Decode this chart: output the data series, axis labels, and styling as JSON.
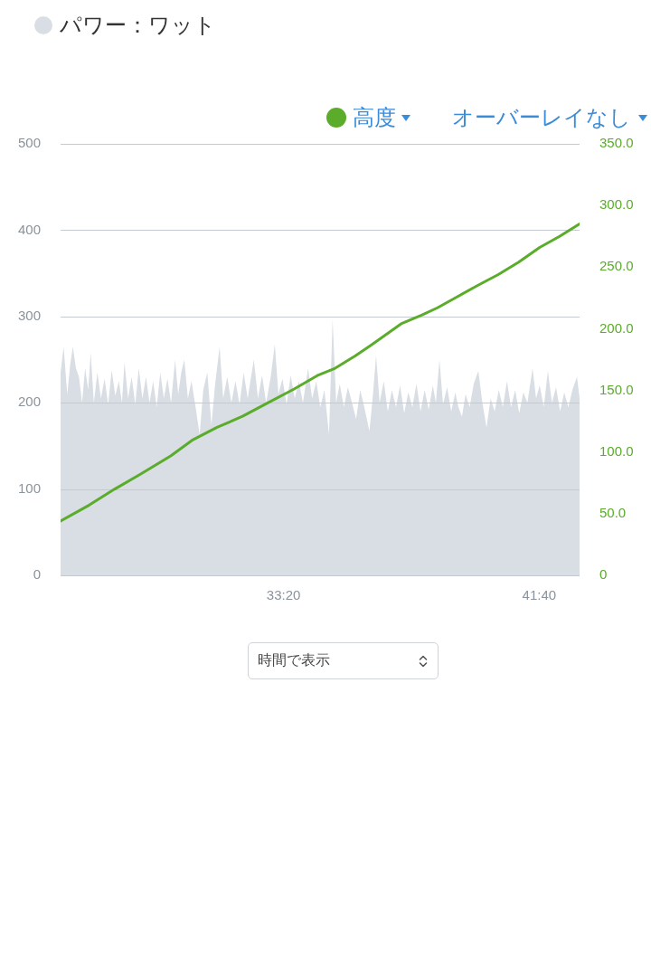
{
  "chart_data": {
    "type": "area",
    "series": [
      {
        "name": "パワー：ワット",
        "color": "#d9dee4",
        "x": [
          1564,
          1570,
          1577,
          1583,
          1588,
          1594,
          1600,
          1606,
          1612,
          1618,
          1623,
          1629,
          1636,
          1643,
          1650,
          1657,
          1664,
          1671,
          1678,
          1684,
          1689,
          1696,
          1703,
          1710,
          1717,
          1724,
          1731,
          1738,
          1745,
          1752,
          1759,
          1766,
          1773,
          1780,
          1788,
          1794,
          1800,
          1806,
          1813,
          1820,
          1828,
          1836,
          1843,
          1851,
          1859,
          1866,
          1875,
          1882,
          1890,
          1898,
          1906,
          1914,
          1922,
          1930,
          1936,
          1942,
          1950,
          1958,
          1966,
          1975,
          1983,
          1990,
          1998,
          2006,
          2014,
          2022,
          2030,
          2038,
          2048,
          2056,
          2064,
          2072,
          2080,
          2089,
          2096,
          2103,
          2110,
          2118,
          2126,
          2134,
          2142,
          2150,
          2158,
          2168,
          2175,
          2181,
          2188,
          2196,
          2204,
          2212,
          2220,
          2228,
          2236,
          2244,
          2252,
          2260,
          2268,
          2276,
          2284,
          2292,
          2298,
          2305,
          2312,
          2320,
          2328,
          2336,
          2342,
          2349,
          2356,
          2364,
          2372,
          2381,
          2389,
          2397,
          2405,
          2413,
          2421,
          2429,
          2437,
          2445,
          2453,
          2461,
          2469,
          2477,
          2487,
          2494,
          2501,
          2509,
          2517,
          2525,
          2533,
          2541,
          2549,
          2557,
          2565,
          2574,
          2579
        ],
        "values": [
          235,
          265,
          210,
          245,
          265,
          240,
          230,
          200,
          240,
          215,
          258,
          200,
          235,
          205,
          228,
          198,
          238,
          208,
          225,
          200,
          247,
          205,
          230,
          198,
          240,
          205,
          230,
          200,
          225,
          195,
          235,
          205,
          228,
          200,
          250,
          210,
          235,
          250,
          205,
          225,
          195,
          163,
          215,
          235,
          174,
          220,
          265,
          205,
          230,
          200,
          225,
          198,
          235,
          205,
          228,
          250,
          205,
          232,
          200,
          230,
          268,
          210,
          228,
          198,
          232,
          205,
          225,
          200,
          240,
          205,
          225,
          195,
          215,
          163,
          297,
          200,
          222,
          195,
          218,
          200,
          181,
          215,
          195,
          167,
          210,
          255,
          200,
          225,
          190,
          215,
          195,
          220,
          188,
          212,
          195,
          222,
          190,
          215,
          192,
          220,
          200,
          250,
          198,
          218,
          190,
          212,
          195,
          184,
          210,
          195,
          222,
          237,
          200,
          171,
          205,
          190,
          215,
          195,
          225,
          195,
          215,
          188,
          212,
          200,
          240,
          205,
          220,
          195,
          237,
          200,
          218,
          190,
          212,
          195,
          215,
          230,
          205
        ]
      },
      {
        "name": "高度",
        "type": "line",
        "axis": "y2",
        "color": "#5aac2a",
        "x": [
          1564,
          1620,
          1670,
          1720,
          1780,
          1823,
          1870,
          1920,
          1965,
          2020,
          2066,
          2101,
          2140,
          2172,
          2230,
          2270,
          2301,
          2340,
          2379,
          2420,
          2460,
          2501,
          2540,
          2579
        ],
        "values": [
          44,
          57,
          70,
          82,
          97,
          110,
          120,
          129,
          139,
          151,
          162,
          168,
          178,
          187,
          204,
          211,
          217,
          226,
          235,
          244,
          254,
          266,
          275,
          285
        ]
      }
    ],
    "xlim": [
      1564,
      2579
    ],
    "xticks": [
      {
        "value": 2000,
        "label": "33:20"
      },
      {
        "value": 2500,
        "label": "41:40"
      }
    ],
    "ylim": [
      0,
      500
    ],
    "yticks": [
      0,
      100,
      200,
      300,
      400,
      500
    ],
    "y2lim": [
      0,
      350
    ],
    "y2ticks": [
      0,
      {
        "value": 50,
        "label": "50.0"
      },
      {
        "value": 100,
        "label": "100.0"
      },
      {
        "value": 150,
        "label": "150.0"
      },
      {
        "value": 200,
        "label": "200.0"
      },
      {
        "value": 250,
        "label": "250.0"
      },
      {
        "value": 300,
        "label": "300.0"
      },
      {
        "value": 350,
        "label": "350.0"
      }
    ],
    "grid": "y",
    "legend": "top",
    "marker": "none",
    "annotations": [
      "オーバーレイなし",
      "時間で表示"
    ]
  }
}
